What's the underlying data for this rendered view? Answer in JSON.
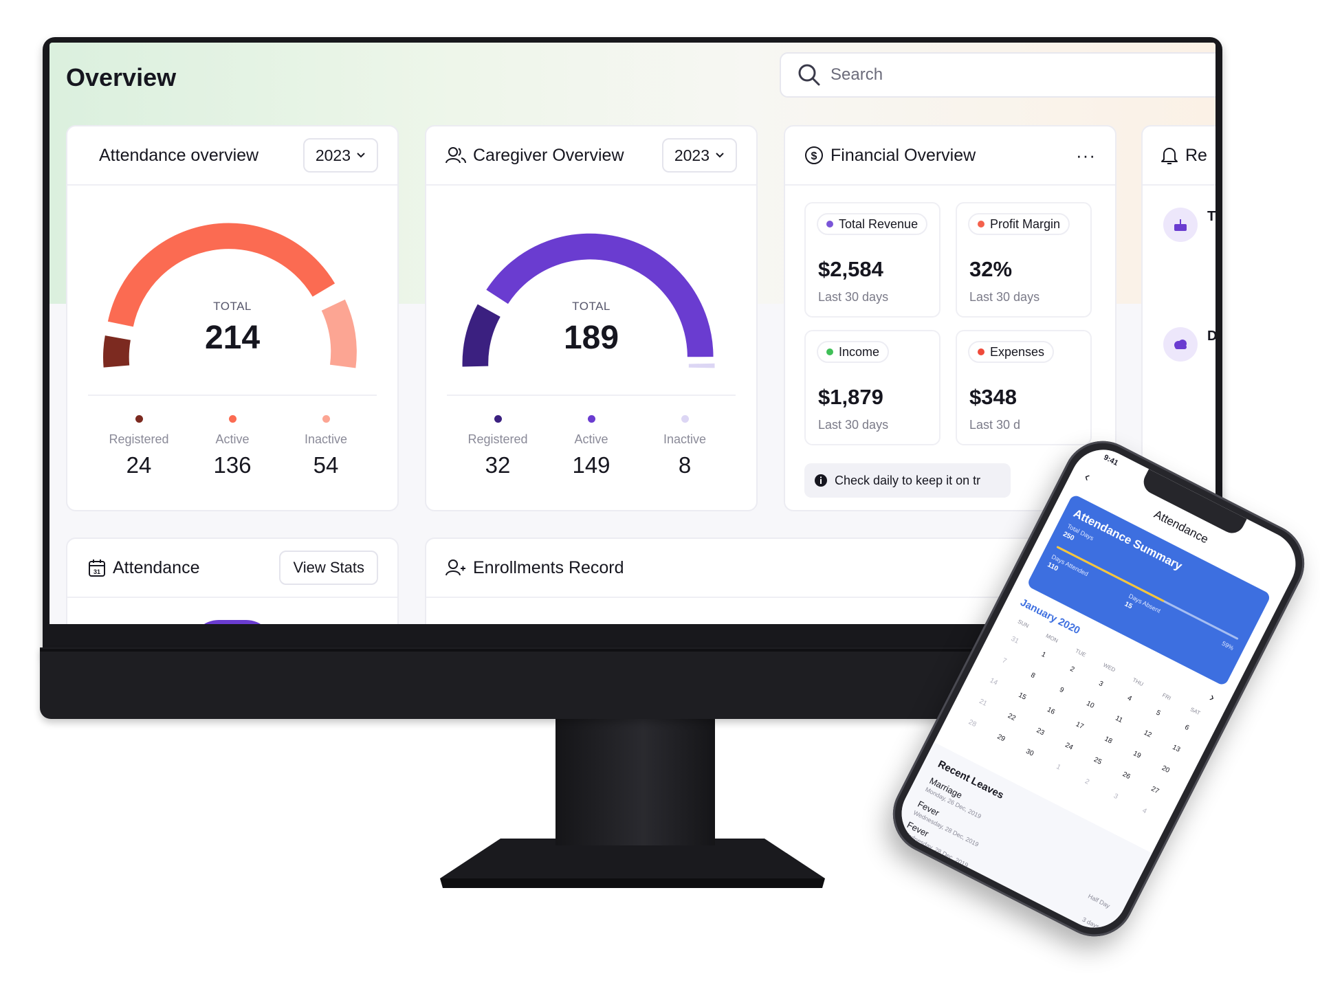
{
  "header": {
    "title": "Overview",
    "search_placeholder": "Search"
  },
  "attendance_overview": {
    "title": "Attendance overview",
    "year": "2023",
    "total_label": "TOTAL",
    "total": "214",
    "stats": [
      {
        "label": "Registered",
        "value": "24",
        "color": "#7c2a20"
      },
      {
        "label": "Active",
        "value": "136",
        "color": "#fb6b52"
      },
      {
        "label": "Inactive",
        "value": "54",
        "color": "#fca593"
      }
    ]
  },
  "caregiver_overview": {
    "title": "Caregiver Overview",
    "year": "2023",
    "total_label": "TOTAL",
    "total": "189",
    "stats": [
      {
        "label": "Registered",
        "value": "32",
        "color": "#3b2080"
      },
      {
        "label": "Active",
        "value": "149",
        "color": "#6a3cd0"
      },
      {
        "label": "Inactive",
        "value": "8",
        "color": "#dcd6f4"
      }
    ]
  },
  "financial_overview": {
    "title": "Financial Overview",
    "more": "···",
    "tiles": [
      {
        "label": "Total Revenue",
        "value": "$2,584",
        "sub": "Last 30 days",
        "color": "#7a55d8"
      },
      {
        "label": "Profit Margin",
        "value": "32%",
        "sub": "Last 30 days",
        "color": "#f4614c"
      },
      {
        "label": "Income",
        "value": "$1,879",
        "sub": "Last 30 days",
        "color": "#3fbf57"
      },
      {
        "label": "Expenses",
        "value": "$348",
        "sub": "Last 30 d",
        "color": "#ef4a3a"
      }
    ],
    "tip": "Check daily to keep it on tr"
  },
  "reminders": {
    "title_fragment": "Re",
    "frag1": "T",
    "frag2": "D"
  },
  "attendance_card": {
    "title": "Attendance",
    "button": "View Stats"
  },
  "enrollments": {
    "title": "Enrollments Record"
  },
  "phone": {
    "time": "9:41",
    "header": "Attendance",
    "summary_title": "Attendance Summary",
    "total_days_label": "Total Days",
    "total_days": "250",
    "days_attended_label": "Days Attended",
    "days_attended": "110",
    "days_absent_label": "Days Absent",
    "days_absent": "15",
    "percent": "59%",
    "progress": 0.59,
    "month": "January 2020",
    "dow": [
      "SUN",
      "MON",
      "TUE",
      "WED",
      "THU",
      "FRI",
      "SAT"
    ],
    "weeks": [
      [
        "31",
        "1",
        "2",
        "3",
        "4",
        "5",
        "6"
      ],
      [
        "7",
        "8",
        "9",
        "10",
        "11",
        "12",
        "13"
      ],
      [
        "14",
        "15",
        "16",
        "17",
        "18",
        "19",
        "20"
      ],
      [
        "21",
        "22",
        "23",
        "24",
        "25",
        "26",
        "27"
      ],
      [
        "28",
        "29",
        "30",
        "1",
        "2",
        "3",
        "4"
      ]
    ],
    "recent_title": "Recent Leaves",
    "leaves": [
      {
        "type": "Marriage",
        "date": "Monday, 26 Dec, 2019",
        "right": ""
      },
      {
        "type": "Fever",
        "date": "Wednesday, 28 Dec, 2019",
        "right": "Half Day"
      },
      {
        "type": "Fever",
        "date": "Wednesday, 28 Dec, 2019",
        "right": "3 days"
      }
    ],
    "extra_right": "3 days"
  }
}
